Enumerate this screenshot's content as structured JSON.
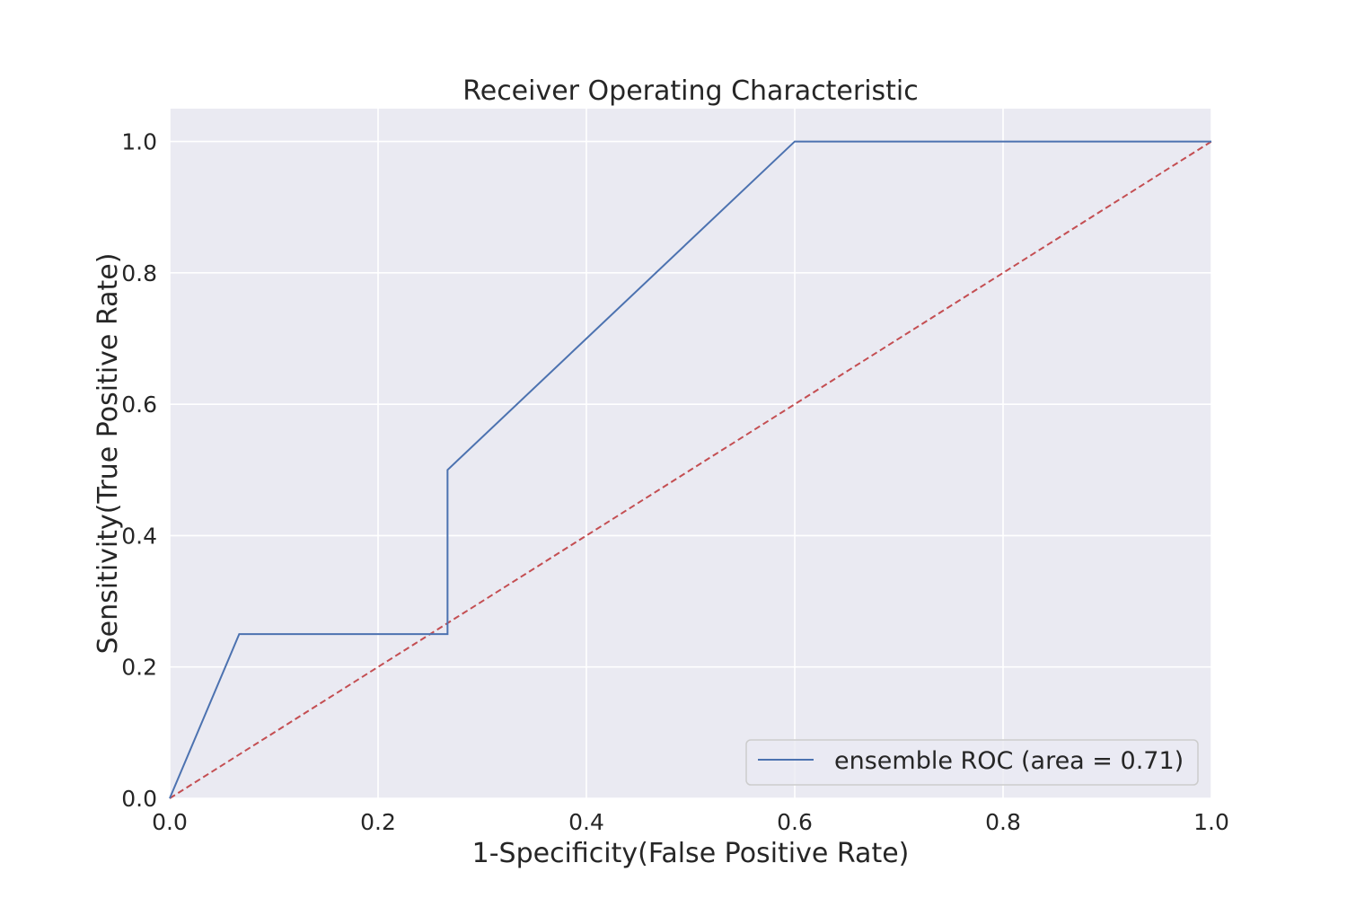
{
  "chart_data": {
    "type": "line",
    "title": "Receiver Operating Characteristic",
    "xlabel": "1-Specificity(False Positive Rate)",
    "ylabel": "Sensitivity(True Positive Rate)",
    "xlim": [
      0,
      1
    ],
    "ylim": [
      0,
      1.05
    ],
    "xticks": [
      0.0,
      0.2,
      0.4,
      0.6,
      0.8,
      1.0
    ],
    "yticks": [
      0.0,
      0.2,
      0.4,
      0.6,
      0.8,
      1.0
    ],
    "xtick_labels": [
      "0.0",
      "0.2",
      "0.4",
      "0.6",
      "0.8",
      "1.0"
    ],
    "ytick_labels": [
      "0.0",
      "0.2",
      "0.4",
      "0.6",
      "0.8",
      "1.0"
    ],
    "grid": true,
    "legend_position": "bottom-right",
    "background_color": "#eaeaf2",
    "series": [
      {
        "name": "ensemble ROC (area = 0.71)",
        "color": "#4c72b0",
        "style": "solid",
        "x": [
          0.0,
          0.0667,
          0.2667,
          0.2667,
          0.6,
          1.0
        ],
        "y": [
          0.0,
          0.25,
          0.25,
          0.5,
          1.0,
          1.0
        ]
      },
      {
        "color": "#c44e52",
        "style": "dashed",
        "x": [
          0.0,
          1.0
        ],
        "y": [
          0.0,
          1.0
        ]
      }
    ]
  }
}
